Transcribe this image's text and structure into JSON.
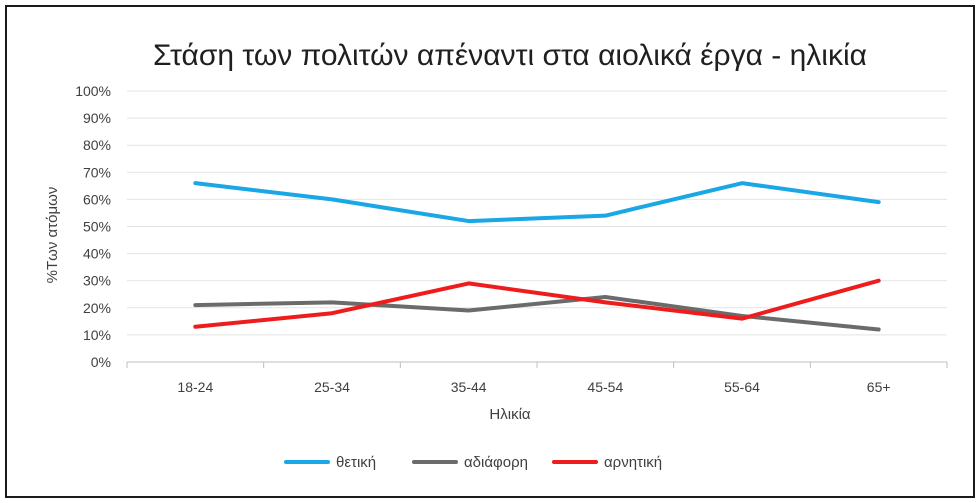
{
  "chart_data": {
    "type": "line",
    "title": "Στάση των πολιτών απέναντι στα αιολικά έργα - ηλικία",
    "xlabel": "Ηλικία",
    "ylabel": "%Των ατόμων",
    "categories": [
      "18-24",
      "25-34",
      "35-44",
      "45-54",
      "55-64",
      "65+"
    ],
    "ylim": [
      0,
      100
    ],
    "yticks": [
      "0%",
      "10%",
      "20%",
      "30%",
      "40%",
      "50%",
      "60%",
      "70%",
      "80%",
      "90%",
      "100%"
    ],
    "grid": true,
    "legend_position": "bottom",
    "series": [
      {
        "name": "θετική",
        "color": "#1aa7e6",
        "values": [
          66,
          60,
          52,
          54,
          66,
          59
        ]
      },
      {
        "name": "αδιάφορη",
        "color": "#6b6b6b",
        "values": [
          21,
          22,
          19,
          24,
          17,
          12
        ]
      },
      {
        "name": "αρνητική",
        "color": "#ee1c1c",
        "values": [
          13,
          18,
          29,
          22,
          16,
          30
        ]
      }
    ]
  }
}
